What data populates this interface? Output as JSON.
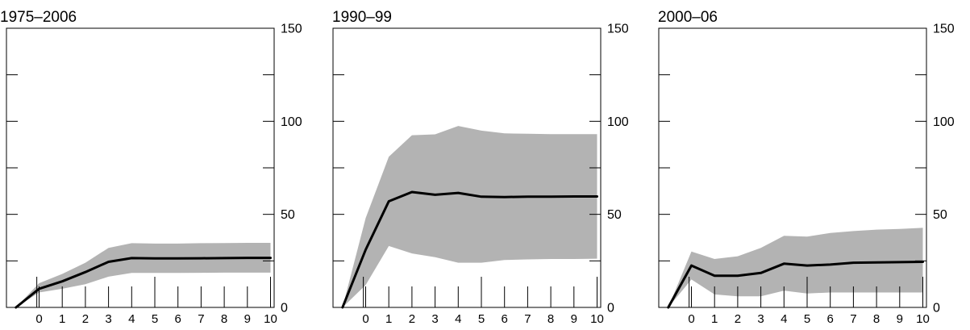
{
  "chart_data": [
    {
      "type": "line",
      "title": "1975–2006",
      "x": [
        -1,
        0,
        1,
        2,
        3,
        4,
        5,
        6,
        7,
        8,
        9,
        10
      ],
      "x_tick_labels": [
        "0",
        "1",
        "2",
        "3",
        "4",
        "5",
        "6",
        "7",
        "8",
        "9",
        "10"
      ],
      "y_tick_labels": [
        "0",
        "50",
        "100",
        "150"
      ],
      "ylim": [
        0,
        150
      ],
      "series": [
        {
          "values": [
            0,
            10,
            14,
            19,
            24.5,
            26.5,
            26.3,
            26.3,
            26.4,
            26.5,
            26.6,
            26.6
          ],
          "color": "#000000"
        }
      ],
      "band": {
        "upper": [
          0,
          13,
          18,
          24,
          32,
          34.5,
          34.3,
          34.3,
          34.5,
          34.6,
          34.7,
          34.7
        ],
        "lower": [
          0,
          8,
          10,
          12.5,
          16.5,
          18.5,
          18.5,
          18.5,
          18.6,
          18.7,
          18.7,
          18.7
        ],
        "color": "#b3b3b3"
      },
      "grid": false
    },
    {
      "type": "line",
      "title": "1990–99",
      "x": [
        -1,
        0,
        1,
        2,
        3,
        4,
        5,
        6,
        7,
        8,
        9,
        10
      ],
      "x_tick_labels": [
        "0",
        "1",
        "2",
        "3",
        "4",
        "5",
        "6",
        "7",
        "8",
        "9",
        "10"
      ],
      "y_tick_labels": [
        "0",
        "50",
        "100",
        "150"
      ],
      "ylim": [
        0,
        150
      ],
      "series": [
        {
          "values": [
            0,
            31,
            57,
            62,
            60.5,
            61.5,
            59.5,
            59.3,
            59.5,
            59.5,
            59.6,
            59.6
          ],
          "color": "#000000"
        }
      ],
      "band": {
        "upper": [
          0,
          48,
          81,
          92.5,
          93,
          97.5,
          95,
          93.5,
          93.3,
          93.1,
          93.1,
          93.1
        ],
        "lower": [
          0,
          12,
          33,
          29,
          27,
          24,
          24,
          25.5,
          25.8,
          26,
          26,
          26.2
        ],
        "color": "#b3b3b3"
      },
      "grid": false
    },
    {
      "type": "line",
      "title": "2000–06",
      "x": [
        -1,
        0,
        1,
        2,
        3,
        4,
        5,
        6,
        7,
        8,
        9,
        10
      ],
      "x_tick_labels": [
        "0",
        "1",
        "2",
        "3",
        "4",
        "5",
        "6",
        "7",
        "8",
        "9",
        "10"
      ],
      "y_tick_labels": [
        "0",
        "50",
        "100",
        "150"
      ],
      "ylim": [
        0,
        150
      ],
      "series": [
        {
          "values": [
            0,
            22.5,
            17,
            17,
            18.5,
            23.5,
            22.5,
            23,
            24,
            24.2,
            24.3,
            24.5
          ],
          "color": "#000000"
        }
      ],
      "band": {
        "upper": [
          0,
          30,
          26,
          27.5,
          32,
          38.5,
          38,
          40,
          41,
          41.8,
          42.2,
          42.8
        ],
        "lower": [
          0,
          15,
          7,
          6,
          6,
          9,
          7.5,
          8,
          8,
          8,
          8,
          8
        ],
        "color": "#b3b3b3"
      },
      "grid": false
    }
  ]
}
